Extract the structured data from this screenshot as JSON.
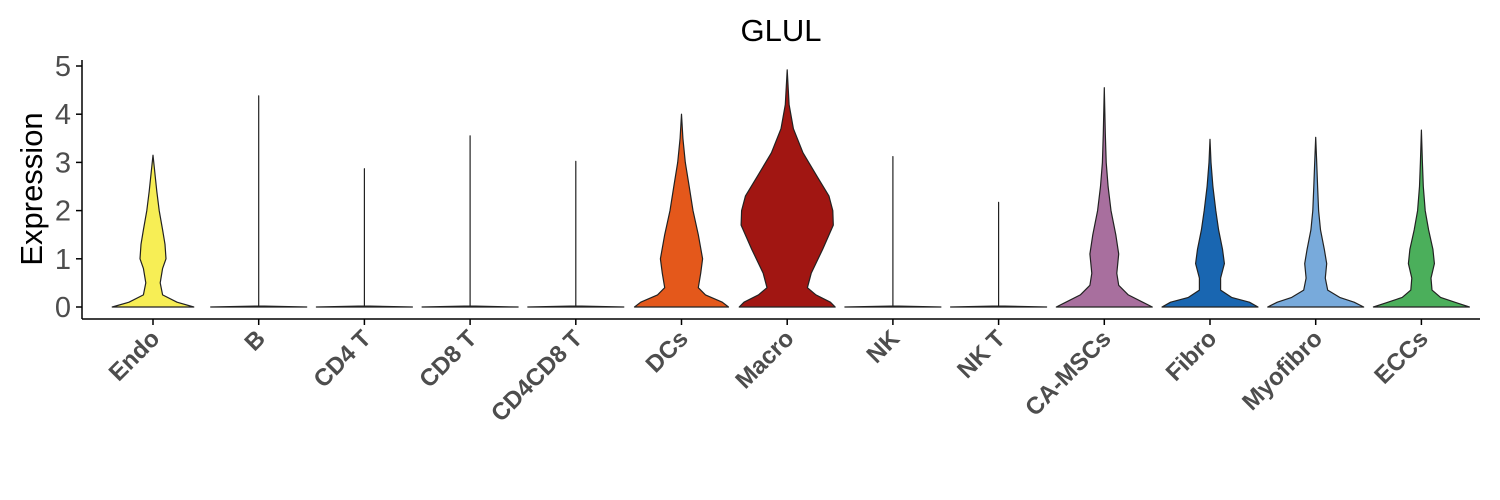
{
  "chart_data": {
    "type": "violin",
    "title": "GLUL",
    "xlabel": "",
    "ylabel": "Expression",
    "ylim": [
      -0.25,
      5.2
    ],
    "yticks": [
      0,
      1,
      2,
      3,
      4,
      5
    ],
    "grid": false,
    "legend": "none",
    "categories": [
      {
        "name": "Endo",
        "color": "#F7EE55",
        "max": 3.15,
        "profile": [
          [
            0,
            0.85
          ],
          [
            0.1,
            0.5
          ],
          [
            0.25,
            0.2
          ],
          [
            0.5,
            0.15
          ],
          [
            0.8,
            0.2
          ],
          [
            1.0,
            0.27
          ],
          [
            1.3,
            0.25
          ],
          [
            1.6,
            0.2
          ],
          [
            2.0,
            0.13
          ],
          [
            2.4,
            0.08
          ],
          [
            3.15,
            0
          ]
        ]
      },
      {
        "name": "B",
        "color": "#ffffff",
        "max": 4.38,
        "profile": [
          [
            0,
            1
          ],
          [
            0.02,
            0
          ],
          [
            4.38,
            0
          ]
        ]
      },
      {
        "name": "CD4 T",
        "color": "#ffffff",
        "max": 2.87,
        "profile": [
          [
            0,
            1
          ],
          [
            0.02,
            0
          ],
          [
            2.87,
            0
          ]
        ]
      },
      {
        "name": "CD8 T",
        "color": "#ffffff",
        "max": 3.55,
        "profile": [
          [
            0,
            1
          ],
          [
            0.02,
            0
          ],
          [
            3.55,
            0
          ]
        ]
      },
      {
        "name": "CD4CD8 T",
        "color": "#ffffff",
        "max": 3.02,
        "profile": [
          [
            0,
            1
          ],
          [
            0.02,
            0
          ],
          [
            3.02,
            0
          ]
        ]
      },
      {
        "name": "DCs",
        "color": "#E4581B",
        "max": 4.0,
        "profile": [
          [
            0,
            0.98
          ],
          [
            0.1,
            0.85
          ],
          [
            0.25,
            0.5
          ],
          [
            0.4,
            0.35
          ],
          [
            0.7,
            0.4
          ],
          [
            1.0,
            0.44
          ],
          [
            1.5,
            0.35
          ],
          [
            2.0,
            0.24
          ],
          [
            2.5,
            0.16
          ],
          [
            3.0,
            0.08
          ],
          [
            3.5,
            0.03
          ],
          [
            4.0,
            0
          ]
        ]
      },
      {
        "name": "Macro",
        "color": "#A11612",
        "max": 4.92,
        "profile": [
          [
            0,
            1
          ],
          [
            0.1,
            0.9
          ],
          [
            0.25,
            0.6
          ],
          [
            0.4,
            0.42
          ],
          [
            0.7,
            0.5
          ],
          [
            1.2,
            0.74
          ],
          [
            1.7,
            0.96
          ],
          [
            2.0,
            0.95
          ],
          [
            2.3,
            0.87
          ],
          [
            2.7,
            0.63
          ],
          [
            3.2,
            0.33
          ],
          [
            3.7,
            0.13
          ],
          [
            4.2,
            0.04
          ],
          [
            4.92,
            0
          ]
        ]
      },
      {
        "name": "NK",
        "color": "#ffffff",
        "max": 3.12,
        "profile": [
          [
            0,
            1
          ],
          [
            0.02,
            0
          ],
          [
            3.12,
            0
          ]
        ]
      },
      {
        "name": "NK T",
        "color": "#ffffff",
        "max": 2.17,
        "profile": [
          [
            0,
            1
          ],
          [
            0.02,
            0
          ],
          [
            2.17,
            0
          ]
        ]
      },
      {
        "name": "CA-MSCs",
        "color": "#A86F9E",
        "max": 4.55,
        "profile": [
          [
            0,
            1
          ],
          [
            0.1,
            0.8
          ],
          [
            0.25,
            0.5
          ],
          [
            0.45,
            0.3
          ],
          [
            0.7,
            0.26
          ],
          [
            1.1,
            0.3
          ],
          [
            1.5,
            0.24
          ],
          [
            2.0,
            0.14
          ],
          [
            2.5,
            0.08
          ],
          [
            3.0,
            0.04
          ],
          [
            3.6,
            0.02
          ],
          [
            4.55,
            0
          ]
        ]
      },
      {
        "name": "Fibro",
        "color": "#1966B1",
        "max": 3.48,
        "profile": [
          [
            0,
            1
          ],
          [
            0.1,
            0.82
          ],
          [
            0.2,
            0.45
          ],
          [
            0.35,
            0.22
          ],
          [
            0.6,
            0.22
          ],
          [
            0.9,
            0.3
          ],
          [
            1.2,
            0.26
          ],
          [
            1.6,
            0.18
          ],
          [
            2.0,
            0.12
          ],
          [
            2.5,
            0.06
          ],
          [
            3.0,
            0.02
          ],
          [
            3.48,
            0
          ]
        ]
      },
      {
        "name": "Myofibro",
        "color": "#78AADB",
        "max": 3.52,
        "profile": [
          [
            0,
            1
          ],
          [
            0.1,
            0.8
          ],
          [
            0.2,
            0.5
          ],
          [
            0.35,
            0.25
          ],
          [
            0.6,
            0.2
          ],
          [
            0.9,
            0.23
          ],
          [
            1.2,
            0.18
          ],
          [
            1.6,
            0.1
          ],
          [
            2.0,
            0.06
          ],
          [
            2.5,
            0.04
          ],
          [
            3.0,
            0.02
          ],
          [
            3.52,
            0
          ]
        ]
      },
      {
        "name": "ECCs",
        "color": "#4BAF5B",
        "max": 3.67,
        "profile": [
          [
            0,
            1
          ],
          [
            0.08,
            0.75
          ],
          [
            0.2,
            0.4
          ],
          [
            0.35,
            0.22
          ],
          [
            0.6,
            0.2
          ],
          [
            0.9,
            0.27
          ],
          [
            1.2,
            0.24
          ],
          [
            1.6,
            0.15
          ],
          [
            2.0,
            0.08
          ],
          [
            2.5,
            0.04
          ],
          [
            3.0,
            0.02
          ],
          [
            3.67,
            0
          ]
        ]
      }
    ]
  }
}
